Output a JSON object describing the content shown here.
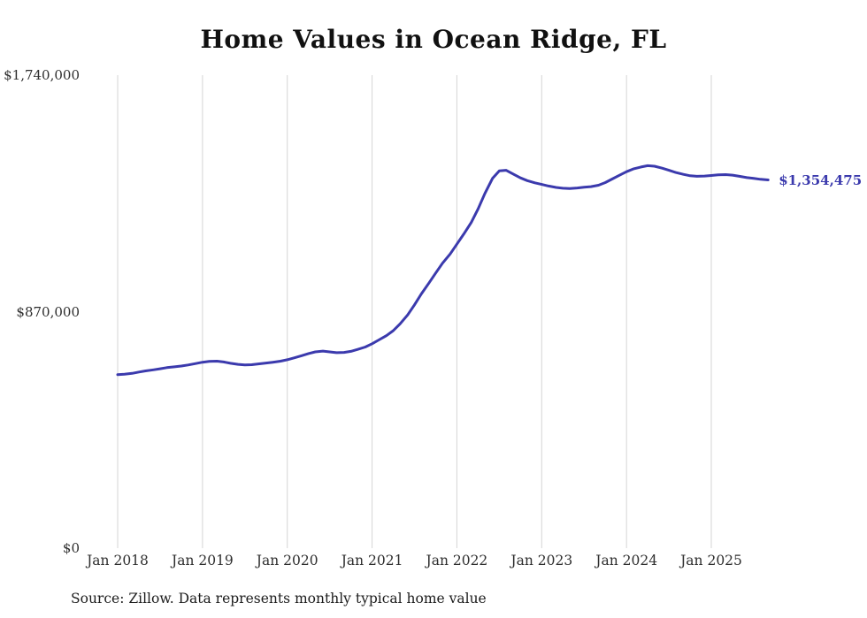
{
  "chart_data": {
    "type": "line",
    "title": "Home Values in Ocean Ridge, FL",
    "source": "Source: Zillow. Data represents monthly typical home value",
    "end_label": "$1,354,475",
    "last_value": 1354475,
    "grid": "vertical-only",
    "line_color": "#3b3aad",
    "grid_color": "#d5d5d5",
    "xlim": [
      2018.0,
      2025.75
    ],
    "ylim": [
      0,
      1740000
    ],
    "x_ticks": [
      2018,
      2019,
      2020,
      2021,
      2022,
      2023,
      2024,
      2025
    ],
    "x_tick_labels": [
      "Jan 2018",
      "Jan 2019",
      "Jan 2020",
      "Jan 2021",
      "Jan 2022",
      "Jan 2023",
      "Jan 2024",
      "Jan 2025"
    ],
    "y_ticks": [
      0,
      870000,
      1740000
    ],
    "y_tick_labels": [
      "$0",
      "$870,000",
      "$1,740,000"
    ],
    "series": [
      {
        "name": "Monthly typical home value",
        "color": "#3b3aad",
        "points": [
          [
            2018.0,
            638000
          ],
          [
            2018.08,
            640000
          ],
          [
            2018.17,
            643000
          ],
          [
            2018.25,
            648000
          ],
          [
            2018.33,
            652000
          ],
          [
            2018.42,
            656000
          ],
          [
            2018.5,
            660000
          ],
          [
            2018.58,
            664000
          ],
          [
            2018.67,
            667000
          ],
          [
            2018.75,
            670000
          ],
          [
            2018.83,
            674000
          ],
          [
            2018.92,
            679000
          ],
          [
            2019.0,
            684000
          ],
          [
            2019.08,
            687000
          ],
          [
            2019.17,
            688000
          ],
          [
            2019.25,
            685000
          ],
          [
            2019.33,
            680000
          ],
          [
            2019.42,
            676000
          ],
          [
            2019.5,
            674000
          ],
          [
            2019.58,
            675000
          ],
          [
            2019.67,
            678000
          ],
          [
            2019.75,
            681000
          ],
          [
            2019.83,
            684000
          ],
          [
            2019.92,
            688000
          ],
          [
            2020.0,
            693000
          ],
          [
            2020.08,
            700000
          ],
          [
            2020.17,
            708000
          ],
          [
            2020.25,
            716000
          ],
          [
            2020.33,
            722000
          ],
          [
            2020.42,
            725000
          ],
          [
            2020.5,
            722000
          ],
          [
            2020.58,
            719000
          ],
          [
            2020.67,
            720000
          ],
          [
            2020.75,
            724000
          ],
          [
            2020.83,
            731000
          ],
          [
            2020.92,
            740000
          ],
          [
            2021.0,
            752000
          ],
          [
            2021.08,
            766000
          ],
          [
            2021.17,
            782000
          ],
          [
            2021.25,
            800000
          ],
          [
            2021.33,
            825000
          ],
          [
            2021.42,
            858000
          ],
          [
            2021.5,
            895000
          ],
          [
            2021.58,
            935000
          ],
          [
            2021.67,
            975000
          ],
          [
            2021.75,
            1012000
          ],
          [
            2021.83,
            1048000
          ],
          [
            2021.92,
            1082000
          ],
          [
            2022.0,
            1118000
          ],
          [
            2022.08,
            1155000
          ],
          [
            2022.17,
            1198000
          ],
          [
            2022.25,
            1248000
          ],
          [
            2022.33,
            1305000
          ],
          [
            2022.42,
            1360000
          ],
          [
            2022.5,
            1388000
          ],
          [
            2022.58,
            1390000
          ],
          [
            2022.67,
            1375000
          ],
          [
            2022.75,
            1362000
          ],
          [
            2022.83,
            1352000
          ],
          [
            2022.92,
            1344000
          ],
          [
            2023.0,
            1338000
          ],
          [
            2023.08,
            1332000
          ],
          [
            2023.17,
            1327000
          ],
          [
            2023.25,
            1324000
          ],
          [
            2023.33,
            1323000
          ],
          [
            2023.42,
            1325000
          ],
          [
            2023.5,
            1328000
          ],
          [
            2023.58,
            1330000
          ],
          [
            2023.67,
            1335000
          ],
          [
            2023.75,
            1345000
          ],
          [
            2023.83,
            1358000
          ],
          [
            2023.92,
            1372000
          ],
          [
            2024.0,
            1385000
          ],
          [
            2024.08,
            1395000
          ],
          [
            2024.17,
            1402000
          ],
          [
            2024.25,
            1407000
          ],
          [
            2024.33,
            1405000
          ],
          [
            2024.42,
            1398000
          ],
          [
            2024.5,
            1390000
          ],
          [
            2024.58,
            1382000
          ],
          [
            2024.67,
            1375000
          ],
          [
            2024.75,
            1370000
          ],
          [
            2024.83,
            1368000
          ],
          [
            2024.92,
            1369000
          ],
          [
            2025.0,
            1371000
          ],
          [
            2025.08,
            1373000
          ],
          [
            2025.17,
            1374000
          ],
          [
            2025.25,
            1372000
          ],
          [
            2025.33,
            1368000
          ],
          [
            2025.42,
            1363000
          ],
          [
            2025.5,
            1360000
          ],
          [
            2025.58,
            1357000
          ],
          [
            2025.67,
            1354475
          ]
        ]
      }
    ]
  }
}
